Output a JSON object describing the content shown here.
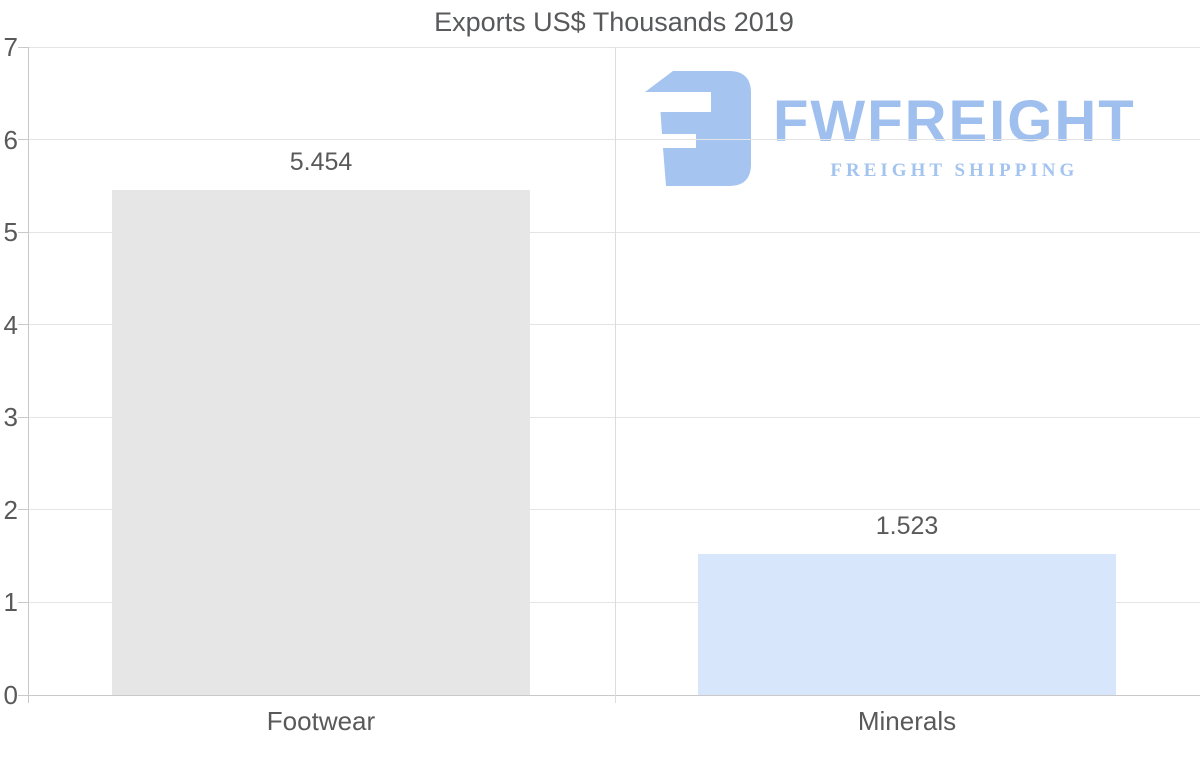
{
  "title": "Exports US$ Thousands 2019",
  "watermark": {
    "brand": "FWFREIGHT",
    "tagline": "FREIGHT SHIPPING",
    "icon": "fwfreight-logo-icon",
    "icon_color": "#a6c4f0",
    "text_color": "#9fc0ee"
  },
  "chart_data": {
    "type": "bar",
    "title": "Exports US$ Thousands 2019",
    "categories": [
      "Footwear",
      "Minerals"
    ],
    "values": [
      5.454,
      1.523
    ],
    "value_labels": [
      "5.454",
      "1.523"
    ],
    "bar_colors": [
      "#e6e6e6",
      "#d8e6fb"
    ],
    "ylim": [
      0,
      7
    ],
    "yticks": [
      0,
      1,
      2,
      3,
      4,
      5,
      6,
      7
    ],
    "grid": true,
    "legend": false,
    "xlabel": "",
    "ylabel": ""
  },
  "colors": {
    "background": "#ffffff",
    "grid_line": "#e4e4e4",
    "axis_line": "#c9c9c9",
    "divider_line": "#dcdcdc",
    "text": "#595959",
    "title_text": "#58595b"
  }
}
